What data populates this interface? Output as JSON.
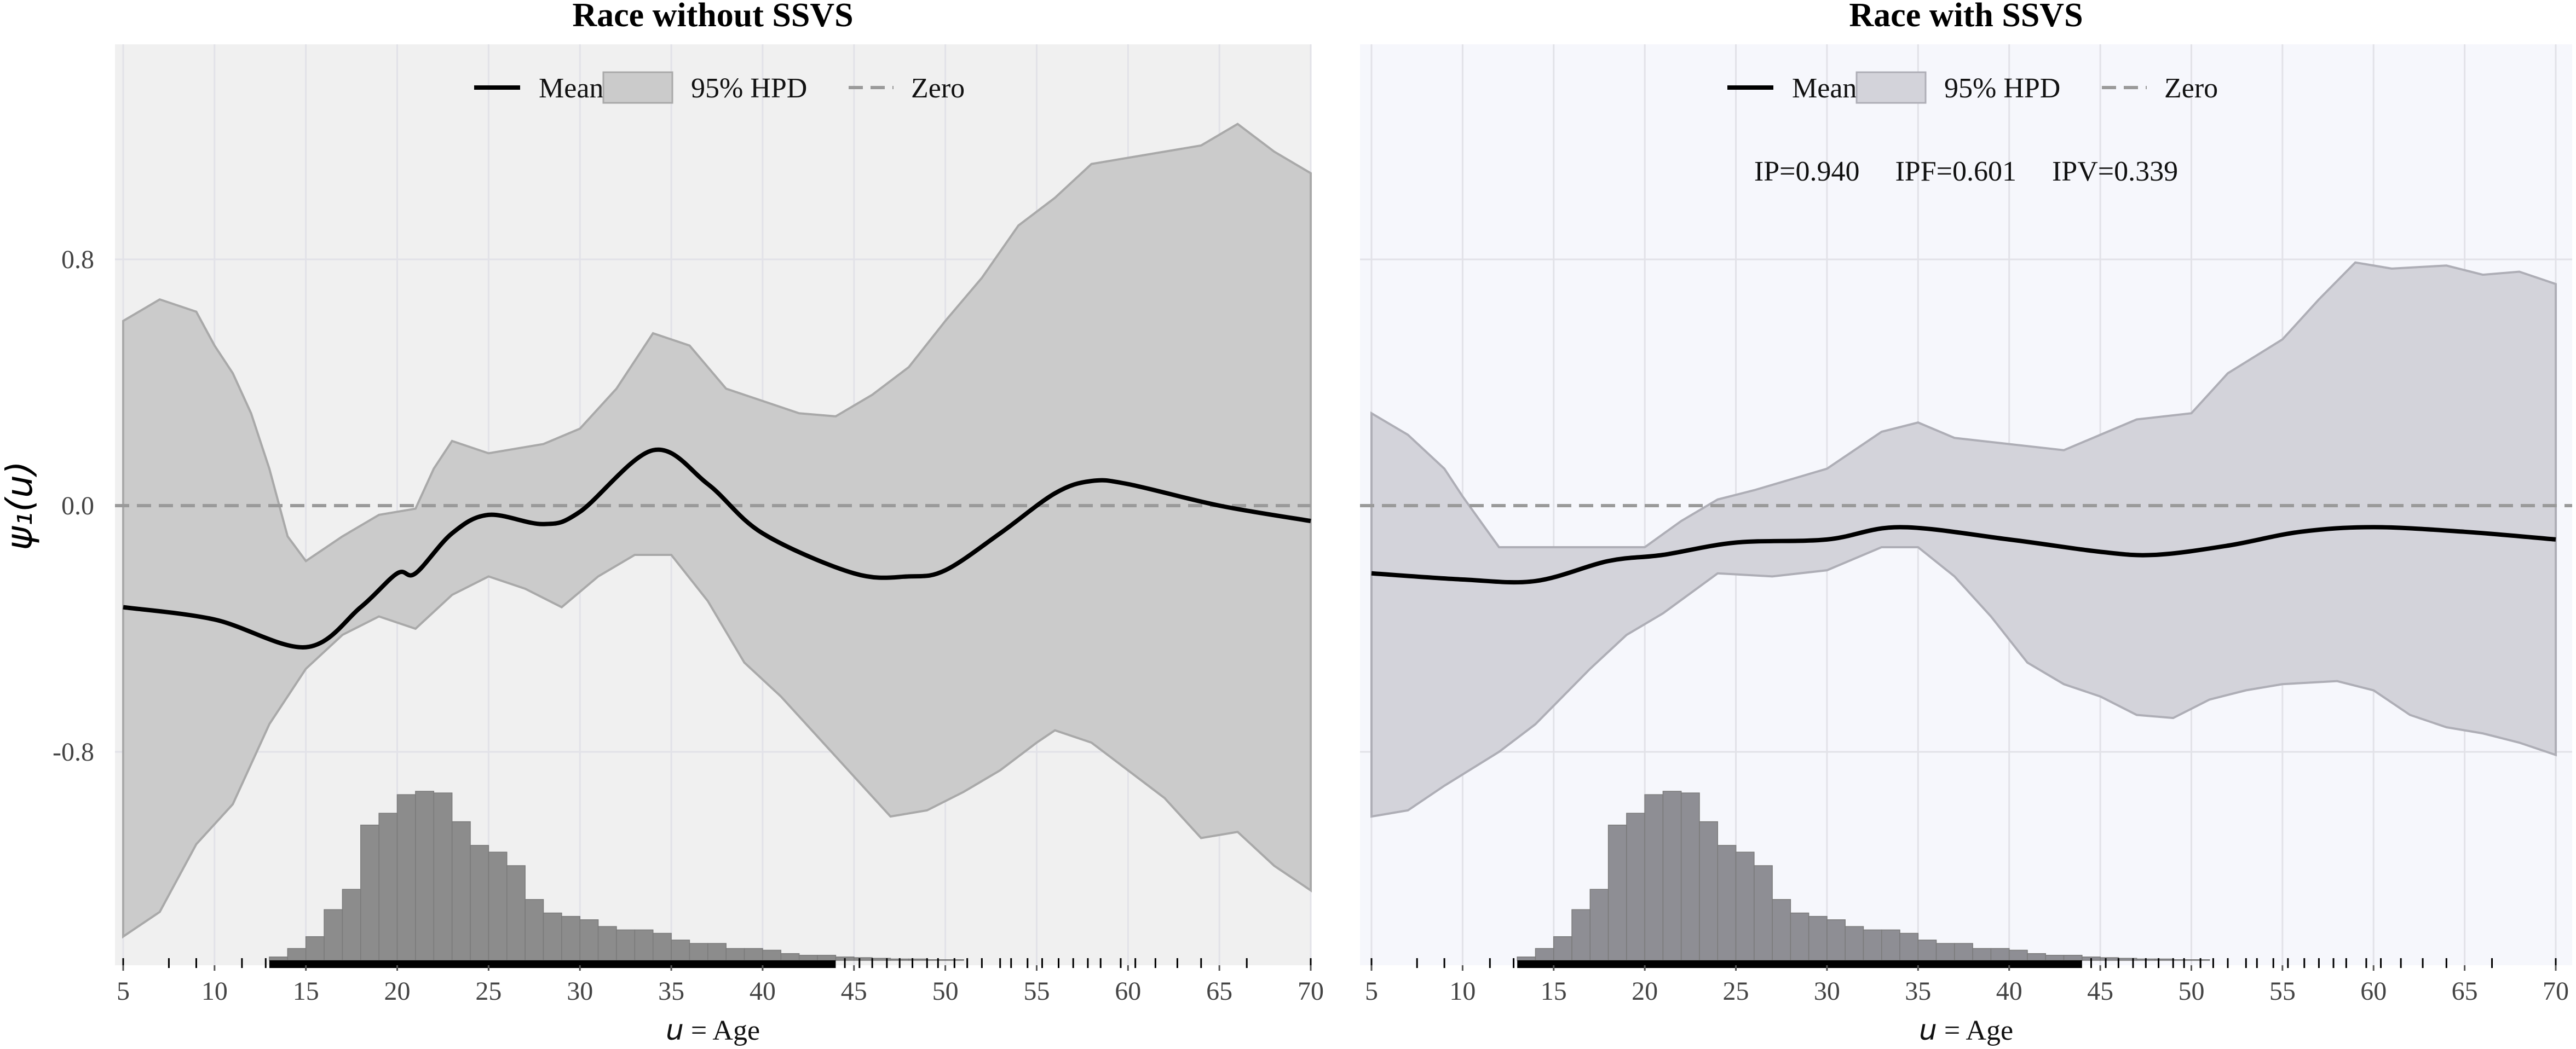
{
  "chart_data": [
    {
      "type": "line",
      "title": "Race without SSVS",
      "xlabel_var": "u",
      "xlabel_eq": "=",
      "xlabel": "Age",
      "ylabel": "ψ₁(u)",
      "xlim": [
        5,
        70
      ],
      "ylim": [
        -1.55,
        1.4
      ],
      "xticks": [
        "5",
        "10",
        "15",
        "20",
        "25",
        "30",
        "35",
        "40",
        "45",
        "50",
        "55",
        "60",
        "65",
        "70"
      ],
      "yticks": [
        {
          "value": 0.8,
          "label": "0.8"
        },
        {
          "value": 0.0,
          "label": "0.0"
        },
        {
          "value": -0.8,
          "label": "-0.8"
        }
      ],
      "legend": {
        "placement": "top-center",
        "entries": [
          "Mean",
          "95% HPD",
          "Zero"
        ]
      },
      "annotation": "",
      "colors": {
        "background": "#f0f0f0",
        "band": "#cbcbcb",
        "band_edge": "#a9a9a9",
        "hist": "#8c8c8c",
        "mean": "#000000",
        "zero": "#9a9a9a"
      },
      "mean": {
        "x": [
          5,
          10,
          15,
          18,
          20,
          21,
          23,
          25,
          28,
          30,
          34,
          37,
          40,
          45,
          48,
          50,
          53,
          56,
          58,
          60,
          65,
          70
        ],
        "y": [
          -0.33,
          -0.37,
          -0.46,
          -0.33,
          -0.22,
          -0.22,
          -0.09,
          -0.03,
          -0.06,
          -0.02,
          0.18,
          0.07,
          -0.09,
          -0.22,
          -0.23,
          -0.21,
          -0.09,
          0.04,
          0.08,
          0.07,
          0.0,
          -0.05
        ]
      },
      "hpd_upper": {
        "x": [
          5,
          7,
          9,
          10,
          11,
          12,
          13,
          14,
          15,
          17,
          19,
          21,
          22,
          23,
          25,
          28,
          30,
          32,
          34,
          36,
          38,
          40,
          42,
          44,
          46,
          48,
          50,
          52,
          54,
          56,
          58,
          60,
          62,
          64,
          66,
          68,
          70
        ],
        "y": [
          0.6,
          0.67,
          0.63,
          0.52,
          0.43,
          0.3,
          0.12,
          -0.1,
          -0.18,
          -0.1,
          -0.03,
          -0.01,
          0.12,
          0.21,
          0.17,
          0.2,
          0.25,
          0.38,
          0.56,
          0.52,
          0.38,
          0.34,
          0.3,
          0.29,
          0.36,
          0.45,
          0.6,
          0.74,
          0.91,
          1.0,
          1.11,
          1.13,
          1.15,
          1.17,
          1.24,
          1.15,
          1.08
        ]
      },
      "hpd_lower": {
        "x": [
          5,
          7,
          9,
          11,
          13,
          15,
          17,
          19,
          21,
          23,
          25,
          27,
          29,
          31,
          33,
          35,
          37,
          39,
          41,
          43,
          45,
          47,
          49,
          51,
          53,
          55,
          56,
          58,
          60,
          62,
          64,
          66,
          68,
          70
        ],
        "y": [
          -1.4,
          -1.32,
          -1.1,
          -0.97,
          -0.71,
          -0.53,
          -0.42,
          -0.36,
          -0.4,
          -0.29,
          -0.23,
          -0.27,
          -0.33,
          -0.23,
          -0.16,
          -0.16,
          -0.31,
          -0.51,
          -0.62,
          -0.75,
          -0.88,
          -1.01,
          -0.99,
          -0.93,
          -0.86,
          -0.77,
          -0.73,
          -0.77,
          -0.86,
          -0.95,
          -1.08,
          -1.06,
          -1.17,
          -1.25
        ]
      }
    },
    {
      "type": "line",
      "title": "Race with SSVS",
      "xlabel_var": "u",
      "xlabel_eq": "=",
      "xlabel": "Age",
      "xlim": [
        5,
        70
      ],
      "ylim": [
        -1.55,
        1.4
      ],
      "xticks": [
        "5",
        "10",
        "15",
        "20",
        "25",
        "30",
        "35",
        "40",
        "45",
        "50",
        "55",
        "60",
        "65",
        "70"
      ],
      "legend": {
        "placement": "top-center",
        "entries": [
          "Mean",
          "95% HPD",
          "Zero"
        ]
      },
      "annotation": "IP=0.940     IPF=0.601     IPV=0.339",
      "colors": {
        "background": "#f6f7fc",
        "band": "#d3d3da",
        "band_edge": "#aeaeb6",
        "hist": "#8e8e94",
        "mean": "#000000",
        "zero": "#9a9a9a"
      },
      "mean": {
        "x": [
          5,
          10,
          14,
          18,
          21,
          25,
          30,
          34,
          40,
          45,
          48,
          52,
          56,
          60,
          65,
          70
        ],
        "y": [
          -0.22,
          -0.24,
          -0.245,
          -0.18,
          -0.16,
          -0.12,
          -0.11,
          -0.07,
          -0.11,
          -0.15,
          -0.16,
          -0.13,
          -0.085,
          -0.07,
          -0.085,
          -0.11
        ]
      },
      "hpd_upper": {
        "x": [
          5,
          7,
          9,
          10,
          12,
          20,
          22,
          24,
          26,
          30,
          33,
          35,
          37,
          40,
          43,
          45,
          47,
          50,
          52,
          55,
          57,
          59,
          61,
          64,
          66,
          68,
          70
        ],
        "y": [
          0.3,
          0.23,
          0.12,
          0.03,
          -0.135,
          -0.135,
          -0.05,
          0.02,
          0.05,
          0.12,
          0.24,
          0.27,
          0.22,
          0.2,
          0.18,
          0.23,
          0.28,
          0.3,
          0.43,
          0.54,
          0.67,
          0.79,
          0.77,
          0.78,
          0.75,
          0.76,
          0.72
        ]
      },
      "hpd_lower": {
        "x": [
          5,
          7,
          9,
          12,
          14,
          17,
          19,
          21,
          24,
          27,
          30,
          33,
          35,
          37,
          39,
          41,
          43,
          45,
          47,
          49,
          51,
          53,
          55,
          58,
          60,
          62,
          64,
          66,
          68,
          70
        ],
        "y": [
          -1.01,
          -0.99,
          -0.91,
          -0.8,
          -0.71,
          -0.53,
          -0.42,
          -0.35,
          -0.22,
          -0.23,
          -0.21,
          -0.135,
          -0.135,
          -0.23,
          -0.36,
          -0.51,
          -0.58,
          -0.62,
          -0.68,
          -0.69,
          -0.63,
          -0.6,
          -0.58,
          -0.57,
          -0.6,
          -0.68,
          -0.72,
          -0.74,
          -0.77,
          -0.81
        ]
      }
    }
  ],
  "age_histogram": {
    "bin_start": 13,
    "bin_width": 1,
    "relative_counts": [
      0.02,
      0.07,
      0.14,
      0.3,
      0.42,
      0.8,
      0.87,
      0.98,
      1.0,
      0.99,
      0.82,
      0.68,
      0.64,
      0.56,
      0.36,
      0.28,
      0.26,
      0.24,
      0.2,
      0.18,
      0.18,
      0.16,
      0.12,
      0.1,
      0.1,
      0.07,
      0.07,
      0.06,
      0.04,
      0.03,
      0.03,
      0.02,
      0.016,
      0.012,
      0.008,
      0.008,
      0.004,
      0.004
    ]
  },
  "rug": {
    "dense_range": [
      13,
      44
    ],
    "sparse": [
      5,
      7.5,
      9,
      11.5,
      12.8,
      44.5,
      45.3,
      46,
      46.8,
      47.5,
      48.2,
      49,
      49.6,
      50.5,
      51.2,
      52,
      53,
      53.6,
      54.5,
      55.3,
      56.2,
      57,
      57.8,
      58.5,
      59.6,
      60.4,
      61.5,
      62.7,
      64,
      66.5,
      70
    ]
  }
}
